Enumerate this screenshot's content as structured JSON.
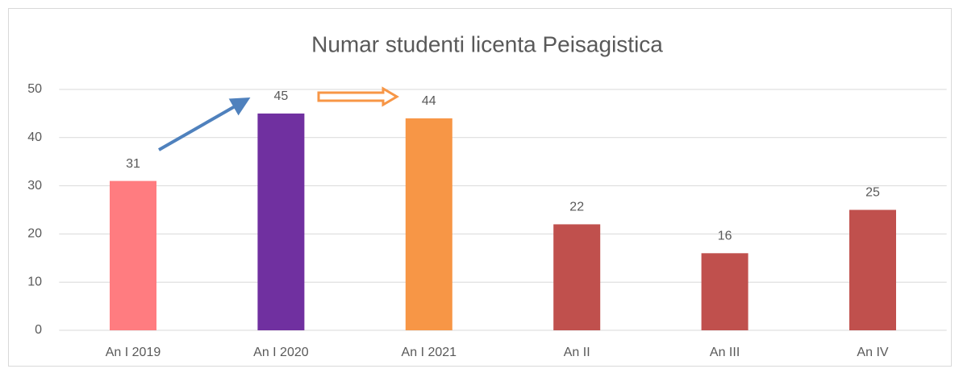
{
  "chart_data": {
    "type": "bar",
    "title": "Numar studenti licenta Peisagistica",
    "categories": [
      "An I 2019",
      "An I 2020",
      "An I 2021",
      "An II",
      "An III",
      "An IV"
    ],
    "values": [
      31,
      45,
      44,
      22,
      16,
      25
    ],
    "colors": [
      "#ff7c80",
      "#7030a0",
      "#f79646",
      "#c0504d",
      "#c0504d",
      "#c0504d"
    ],
    "ylim": [
      0,
      50
    ],
    "yticks": [
      0,
      10,
      20,
      30,
      40,
      50
    ],
    "grid": true
  }
}
